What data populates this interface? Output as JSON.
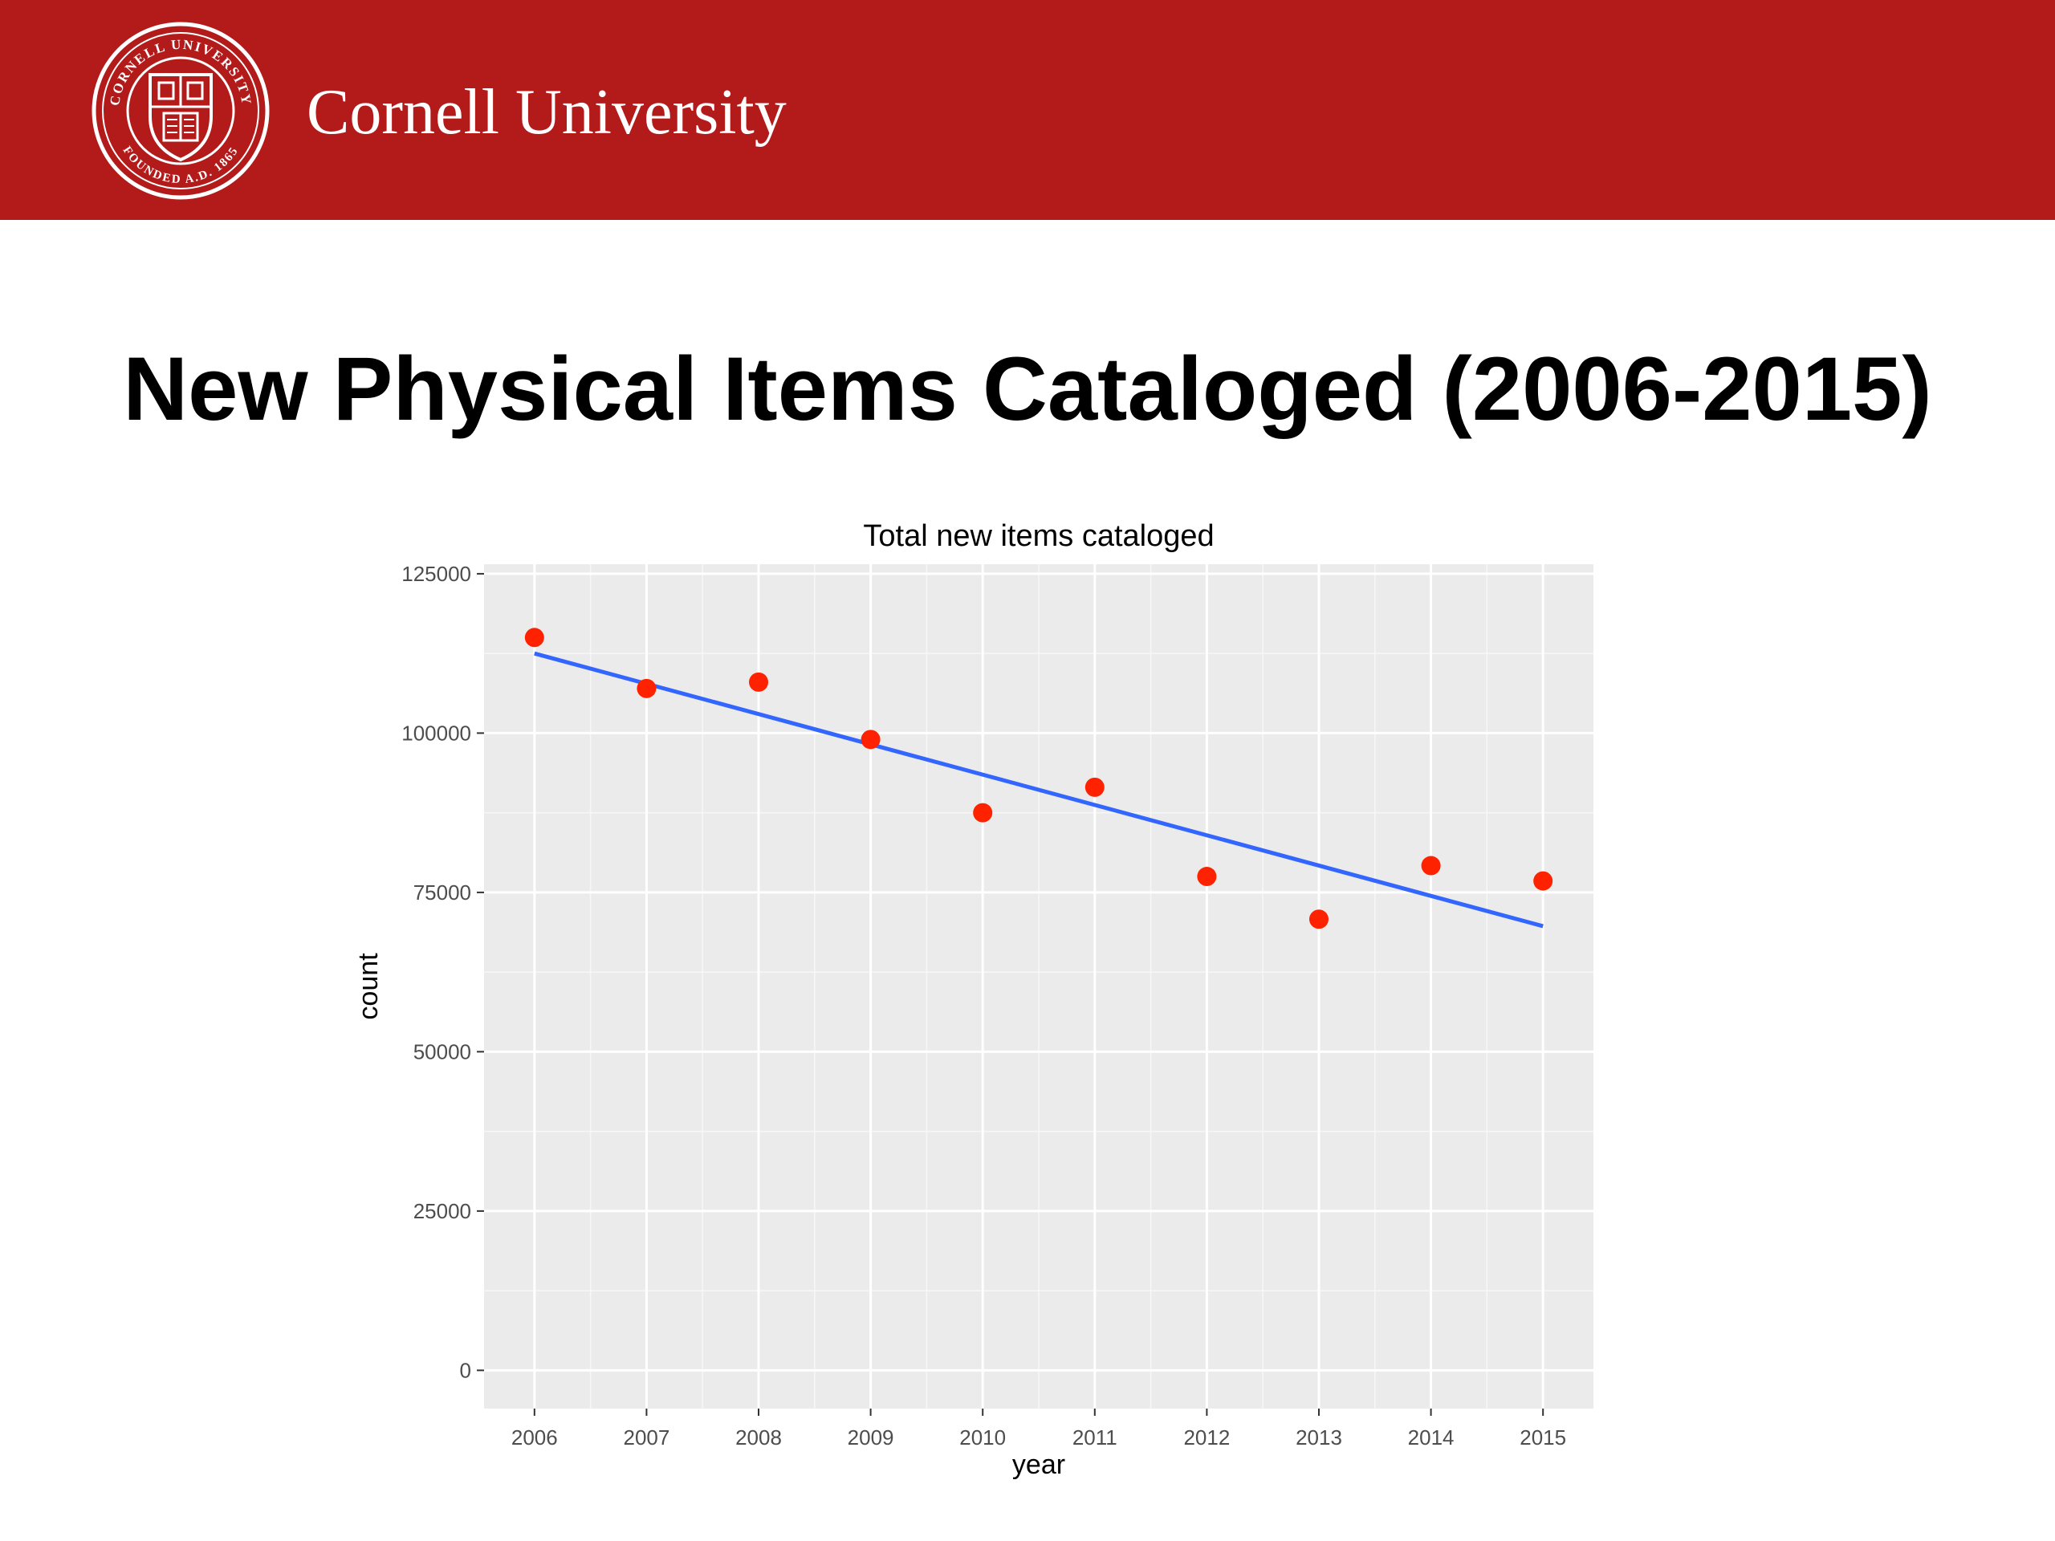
{
  "header": {
    "university_name": "Cornell University",
    "seal_text_top": "CORNELL UNIVERSITY",
    "seal_text_bottom": "FOUNDED A.D. 1865",
    "banner_color": "#B31B1B"
  },
  "slide": {
    "title": "New Physical Items Cataloged (2006-2015)"
  },
  "chart_data": {
    "type": "scatter",
    "title": "Total new items cataloged",
    "xlabel": "year",
    "ylabel": "count",
    "x": [
      2006,
      2007,
      2008,
      2009,
      2010,
      2011,
      2012,
      2013,
      2014,
      2015
    ],
    "y": [
      115000,
      107000,
      108000,
      99000,
      87500,
      91500,
      77500,
      70800,
      79200,
      76800
    ],
    "xlim": [
      2005.55,
      2015.45
    ],
    "ylim": [
      -6000,
      126500
    ],
    "yticks": [
      0,
      25000,
      50000,
      75000,
      100000,
      125000
    ],
    "ytick_labels": [
      "0",
      "25000",
      "50000",
      "75000",
      "100000",
      "125000"
    ],
    "xticks": [
      2006,
      2007,
      2008,
      2009,
      2010,
      2011,
      2012,
      2013,
      2014,
      2015
    ],
    "xtick_labels": [
      "2006",
      "2007",
      "2008",
      "2009",
      "2010",
      "2011",
      "2012",
      "2013",
      "2014",
      "2015"
    ],
    "trend_line": {
      "type": "linear",
      "x": [
        2006,
        2015
      ],
      "y": [
        112500,
        69700
      ],
      "color": "#3366FF"
    },
    "point_color": "#FF2200",
    "panel_background": "#EBEBEB",
    "grid": true
  }
}
